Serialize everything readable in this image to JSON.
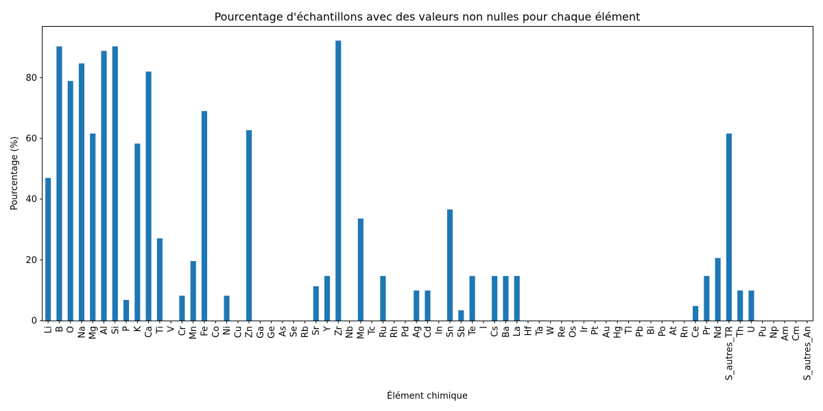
{
  "chart_data": {
    "type": "bar",
    "title": "Pourcentage d'échantillons avec des valeurs non nulles pour chaque élément",
    "xlabel": "Élément chimique",
    "ylabel": "Pourcentage (%)",
    "ylim": [
      0,
      97
    ],
    "yticks": [
      0,
      20,
      40,
      60,
      80
    ],
    "grid": false,
    "legend": "none",
    "bar_color": "#1f77b4",
    "categories": [
      "Li",
      "B",
      "O",
      "Na",
      "Mg",
      "Al",
      "Si",
      "P",
      "K",
      "Ca",
      "Ti",
      "V",
      "Cr",
      "Mn",
      "Fe",
      "Co",
      "Ni",
      "Cu",
      "Zn",
      "Ga",
      "Ge",
      "As",
      "Se",
      "Rb",
      "Sr",
      "Y",
      "Zr",
      "Nb",
      "Mo",
      "Tc",
      "Ru",
      "Rh",
      "Pd",
      "Ag",
      "Cd",
      "In",
      "Sn",
      "Sb",
      "Te",
      "I",
      "Cs",
      "Ba",
      "La",
      "Hf",
      "Ta",
      "W",
      "Re",
      "Os",
      "Ir",
      "Pt",
      "Au",
      "Hg",
      "Tl",
      "Pb",
      "Bi",
      "Po",
      "At",
      "Rn",
      "Ce",
      "Pr",
      "Nd",
      "S_autres_TR",
      "Th",
      "U",
      "Pu",
      "Np",
      "Am",
      "Cm",
      "S_autres_An"
    ],
    "values": [
      47,
      90.3,
      78.9,
      84.7,
      61.6,
      88.8,
      90.3,
      6.8,
      58.3,
      82,
      27.1,
      0,
      8.2,
      19.6,
      69,
      0,
      8.2,
      0,
      62.7,
      0,
      0,
      0,
      0,
      0,
      11.3,
      14.7,
      92.2,
      0,
      33.6,
      0,
      14.7,
      0,
      0,
      9.9,
      9.9,
      0,
      36.6,
      3.4,
      14.7,
      0,
      14.7,
      14.7,
      14.7,
      0,
      0,
      0,
      0,
      0,
      0,
      0,
      0,
      0,
      0,
      0,
      0,
      0,
      0,
      0,
      4.8,
      14.7,
      20.6,
      61.6,
      9.9,
      9.9,
      0,
      0,
      0,
      0,
      0
    ]
  }
}
